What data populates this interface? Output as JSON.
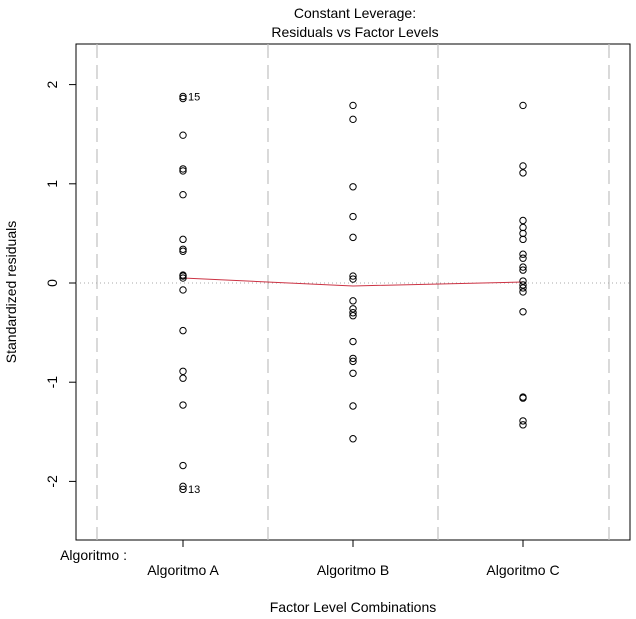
{
  "chart_data": {
    "type": "scatter",
    "title_line1": "Constant Leverage:",
    "title_line2": "Residuals vs Factor Levels",
    "xlabel": "Factor Level Combinations",
    "ylabel": "Standardized residuals",
    "factor_name": "Algoritmo :",
    "categories": [
      "Algoritmo A",
      "Algoritmo B",
      "Algoritmo C"
    ],
    "ylim": [
      -2.6,
      2.4
    ],
    "yticks": [
      -2,
      -1,
      0,
      1,
      2
    ],
    "ytick_labels": [
      "-2",
      "-1",
      "0",
      "1",
      "2"
    ],
    "series": [
      {
        "category": "Algoritmo A",
        "values": [
          1.88,
          1.86,
          1.49,
          1.15,
          1.13,
          0.89,
          0.44,
          0.34,
          0.32,
          0.08,
          0.07,
          0.05,
          -0.07,
          -0.48,
          -0.89,
          -0.96,
          -1.23,
          -1.84,
          -2.05,
          -2.08
        ]
      },
      {
        "category": "Algoritmo B",
        "values": [
          1.79,
          1.65,
          0.97,
          0.67,
          0.46,
          0.07,
          0.04,
          -0.18,
          -0.26,
          -0.3,
          -0.33,
          -0.59,
          -0.76,
          -0.79,
          -0.91,
          -1.24,
          -1.57
        ]
      },
      {
        "category": "Algoritmo C",
        "values": [
          1.79,
          1.18,
          1.11,
          0.63,
          0.56,
          0.5,
          0.44,
          0.29,
          0.25,
          0.16,
          0.13,
          0.02,
          -0.02,
          -0.05,
          -0.09,
          -0.29,
          -1.15,
          -1.16,
          -1.39,
          -1.43
        ]
      }
    ],
    "smoother": {
      "color": "#cc3344",
      "points": [
        [
          0,
          0.05
        ],
        [
          1,
          -0.03
        ],
        [
          2,
          0.01
        ]
      ]
    },
    "zero_line": 0,
    "labeled_points": [
      {
        "label": "15",
        "category": "Algoritmo A",
        "value": 1.88
      },
      {
        "label": "13",
        "category": "Algoritmo A",
        "value": -2.08
      }
    ],
    "colors": {
      "points": "#000000",
      "dashed_separators": "#c0c0c0",
      "zero_line": "#aaaaaa",
      "smoother": "#cc3344"
    }
  }
}
